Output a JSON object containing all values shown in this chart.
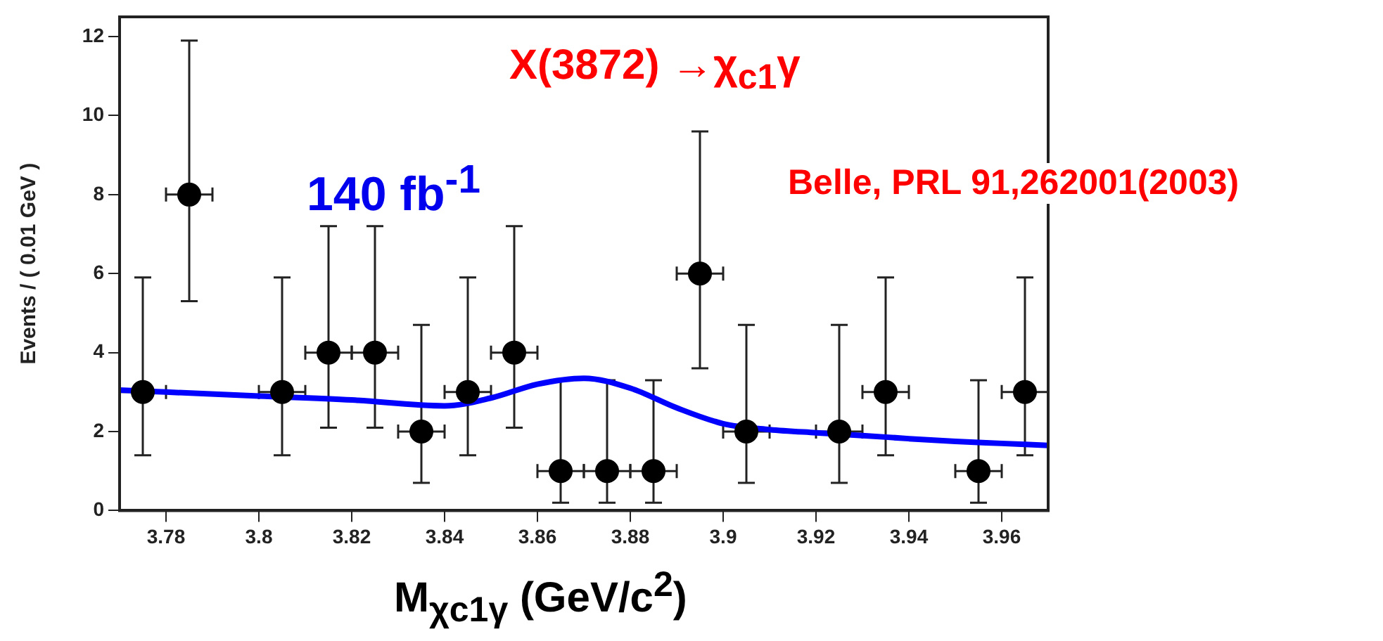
{
  "chart_data": {
    "type": "scatter",
    "xlabel": "M$_{χc1γ}$ (GeV/c$^{2}$)",
    "ylabel": "Events / ( 0.01 GeV )",
    "annotations": [
      "X(3872) →χ$_{c1}$γ",
      "140 fb$^{-1}$",
      "Belle, PRL 91,262001(2003)"
    ],
    "xlim": [
      3.77,
      3.97
    ],
    "xticks": [
      3.78,
      3.8,
      3.82,
      3.84,
      3.86,
      3.88,
      3.9,
      3.92,
      3.94,
      3.96
    ],
    "ylim": [
      0,
      12.5
    ],
    "yticks": [
      0,
      2,
      4,
      6,
      8,
      10,
      12
    ],
    "grid": false,
    "legend": false,
    "marker": "circle",
    "series": [
      {
        "type": "scatter",
        "color": "#000000",
        "x": [
          3.775,
          3.785,
          3.805,
          3.815,
          3.825,
          3.835,
          3.845,
          3.855,
          3.865,
          3.875,
          3.885,
          3.895,
          3.905,
          3.925,
          3.935,
          3.955,
          3.965
        ],
        "values": [
          3,
          8,
          3,
          4,
          4,
          2,
          3,
          4,
          1,
          1,
          1,
          6,
          2,
          2,
          3,
          1,
          3
        ],
        "errors": [
          [
            1.4,
            5.9
          ],
          [
            5.3,
            11.9
          ],
          [
            1.4,
            5.9
          ],
          [
            2.1,
            7.2
          ],
          [
            2.1,
            7.2
          ],
          [
            0.7,
            4.7
          ],
          [
            1.4,
            5.9
          ],
          [
            2.1,
            7.2
          ],
          [
            0.2,
            3.3
          ],
          [
            0.2,
            3.3
          ],
          [
            0.2,
            3.3
          ],
          [
            3.6,
            9.6
          ],
          [
            0.7,
            4.7
          ],
          [
            0.7,
            4.7
          ],
          [
            1.4,
            5.9
          ],
          [
            0.2,
            3.3
          ],
          [
            1.4,
            5.9
          ]
        ],
        "xerrors": [
          0.005,
          0.005,
          0.005,
          0.005,
          0.005,
          0.005,
          0.005,
          0.005,
          0.005,
          0.005,
          0.005,
          0.005,
          0.005,
          0.005,
          0.005,
          0.005,
          0.005
        ]
      },
      {
        "type": "line",
        "marker": "none",
        "color": "#0000ff",
        "x": [
          3.77,
          3.78,
          3.8,
          3.82,
          3.84,
          3.85,
          3.86,
          3.87,
          3.88,
          3.89,
          3.9,
          3.91,
          3.92,
          3.93,
          3.94,
          3.95,
          3.96,
          3.97
        ],
        "values": [
          3.05,
          3.0,
          2.9,
          2.8,
          2.65,
          2.85,
          3.2,
          3.35,
          3.1,
          2.6,
          2.2,
          2.05,
          1.97,
          1.9,
          1.82,
          1.75,
          1.7,
          1.65
        ]
      }
    ]
  }
}
